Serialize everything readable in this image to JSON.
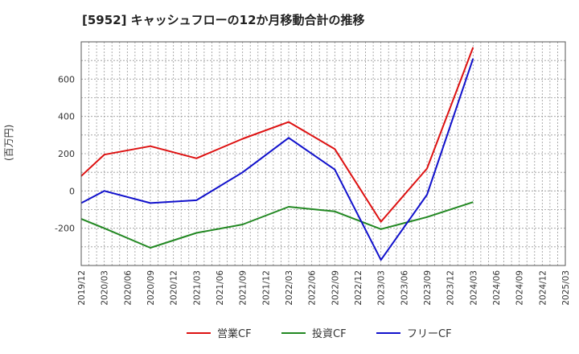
{
  "chart_data": {
    "type": "line",
    "title": "[5952]  キャッシュフローの12か月移動合計の推移",
    "ylabel": "(百万円)",
    "xlabel": "",
    "x": [
      "2019/12",
      "2020/03",
      "2020/06",
      "2020/09",
      "2020/12",
      "2021/03",
      "2021/06",
      "2021/09",
      "2021/12",
      "2022/03",
      "2022/06",
      "2022/09",
      "2022/12",
      "2023/03",
      "2023/06",
      "2023/09",
      "2023/12",
      "2024/03",
      "2024/06",
      "2024/09",
      "2024/12",
      "2025/03"
    ],
    "ylim": [
      -400,
      800
    ],
    "yticks": [
      -200,
      0,
      200,
      400,
      600
    ],
    "grid": true,
    "legend_position": "bottom",
    "series": [
      {
        "name": "営業CF",
        "color": "#dd1111",
        "values": [
          80,
          195,
          null,
          240,
          null,
          175,
          null,
          280,
          null,
          370,
          null,
          225,
          null,
          -165,
          null,
          120,
          null,
          770,
          null,
          null,
          null,
          null
        ]
      },
      {
        "name": "投資CF",
        "color": "#228822",
        "values": [
          -150,
          -200,
          null,
          -305,
          null,
          -225,
          null,
          -180,
          null,
          -85,
          null,
          -110,
          null,
          -205,
          null,
          -140,
          null,
          -60,
          null,
          null,
          null,
          null
        ]
      },
      {
        "name": "フリーCF",
        "color": "#1111cc",
        "values": [
          -65,
          0,
          null,
          -65,
          null,
          -50,
          null,
          100,
          null,
          285,
          null,
          115,
          null,
          -370,
          null,
          -20,
          null,
          710,
          null,
          null,
          null,
          null
        ]
      }
    ]
  }
}
